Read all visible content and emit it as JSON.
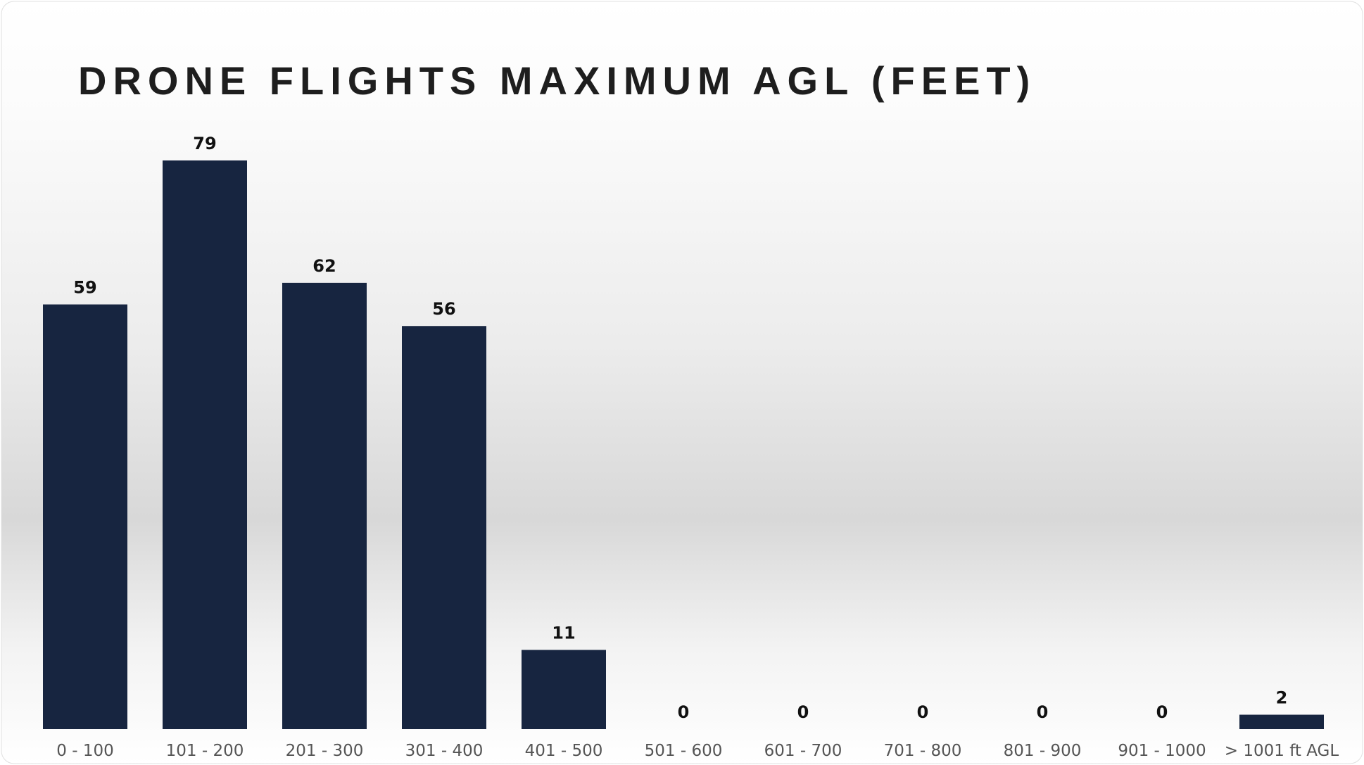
{
  "chart_data": {
    "type": "bar",
    "title": "DRONE FLIGHTS MAXIMUM AGL (FEET)",
    "categories": [
      "0 - 100",
      "101 - 200",
      "201 - 300",
      "301 - 400",
      "401 - 500",
      "501 - 600",
      "601 - 700",
      "701 - 800",
      "801 - 900",
      "901 - 1000",
      "> 1001 ft AGL"
    ],
    "values": [
      59,
      79,
      62,
      56,
      11,
      0,
      0,
      0,
      0,
      0,
      2
    ],
    "color": "#172540"
  }
}
